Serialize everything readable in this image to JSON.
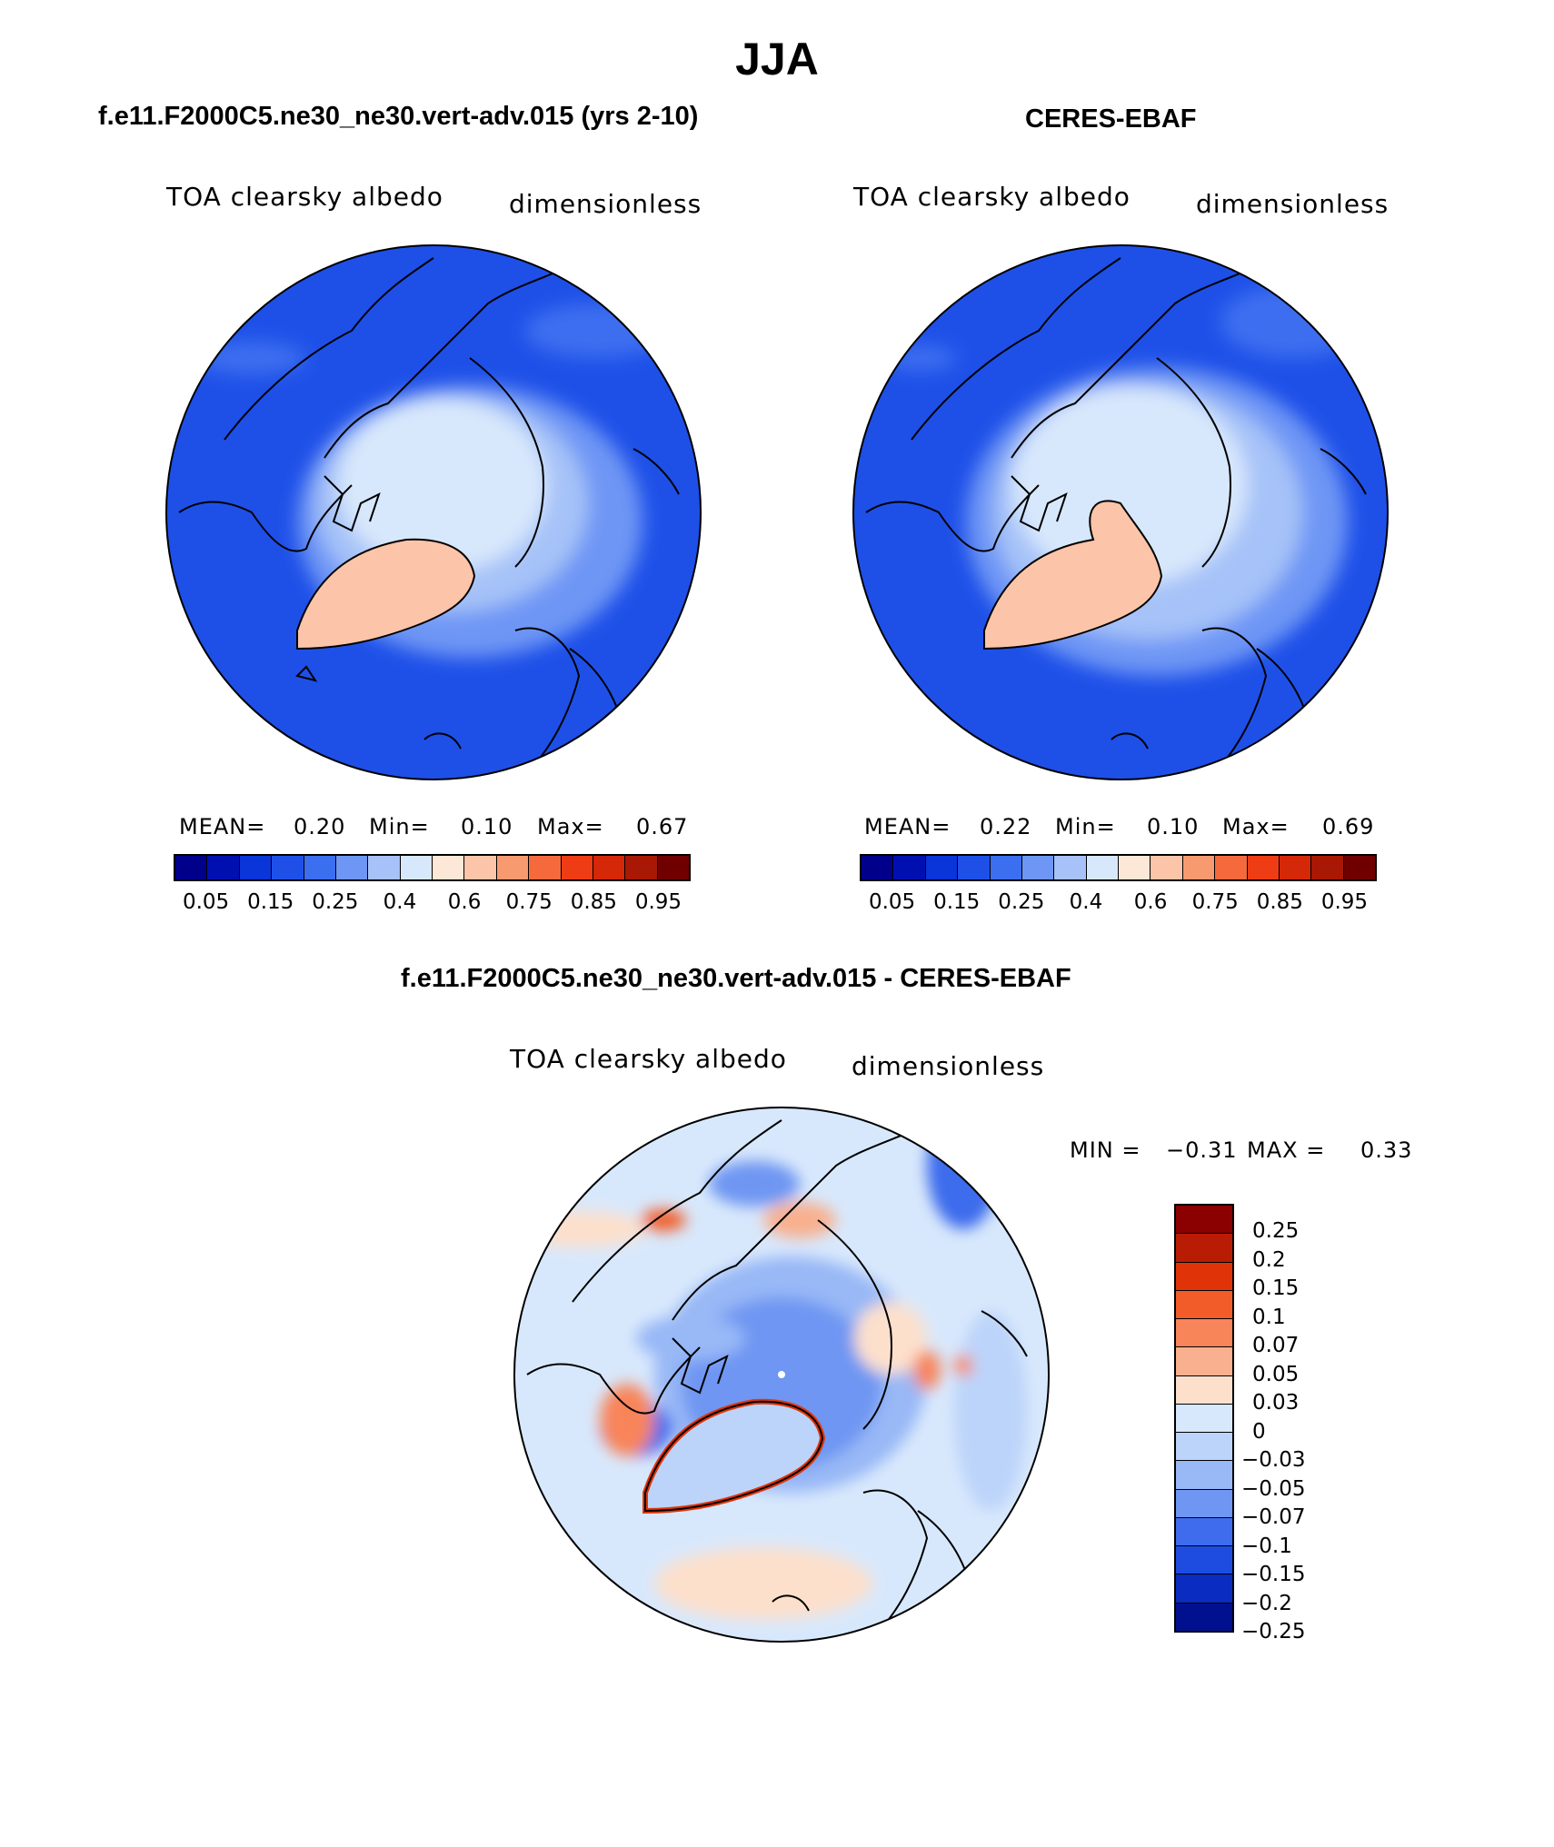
{
  "title": "JJA",
  "panels": [
    {
      "case_title": "f.e11.F2000C5.ne30_ne30.vert-adv.015 (yrs 2-10)",
      "variable": "TOA clearsky albedo",
      "units": "dimensionless",
      "stats": {
        "mean_label": "MEAN=",
        "mean": "0.20",
        "min_label": "Min=",
        "min": "0.10",
        "max_label": "Max=",
        "max": "0.67"
      }
    },
    {
      "case_title": "CERES-EBAF",
      "variable": "TOA clearsky albedo",
      "units": "dimensionless",
      "stats": {
        "mean_label": "MEAN=",
        "mean": "0.22",
        "min_label": "Min=",
        "min": "0.10",
        "max_label": "Max=",
        "max": "0.69"
      }
    }
  ],
  "colorbar": {
    "colors": [
      "#00008b",
      "#0010b0",
      "#0a35d8",
      "#1e50e8",
      "#3c6ef0",
      "#6e96f5",
      "#a6c2f8",
      "#d8e8fc",
      "#fde8d8",
      "#fcc4a8",
      "#f89a70",
      "#f46a3c",
      "#ee3c14",
      "#d42808",
      "#a81804",
      "#700000"
    ],
    "tick_labels": [
      "0.05",
      "0.15",
      "0.25",
      "0.4",
      "0.6",
      "0.75",
      "0.85",
      "0.95"
    ]
  },
  "diff": {
    "title": "f.e11.F2000C5.ne30_ne30.vert-adv.015 - CERES-EBAF",
    "variable": "TOA clearsky albedo",
    "units": "dimensionless",
    "min_label": "MIN =",
    "min": "−0.31",
    "max_label": "MAX =",
    "max": "0.33",
    "colorbar": {
      "colors": [
        "#8b0000",
        "#b81c04",
        "#e03408",
        "#f25c28",
        "#f8845a",
        "#f8b08e",
        "#fde0cc",
        "#d8e8fc",
        "#bcd4fa",
        "#98b8f6",
        "#6e96f2",
        "#3e6cec",
        "#1e4ce0",
        "#0a2cc0",
        "#00108f"
      ],
      "labels": [
        "0.25",
        "0.2",
        "0.15",
        "0.1",
        "0.07",
        "0.05",
        "0.03",
        "0",
        "−0.03",
        "−0.05",
        "−0.07",
        "−0.1",
        "−0.15",
        "−0.2",
        "−0.25"
      ]
    }
  }
}
